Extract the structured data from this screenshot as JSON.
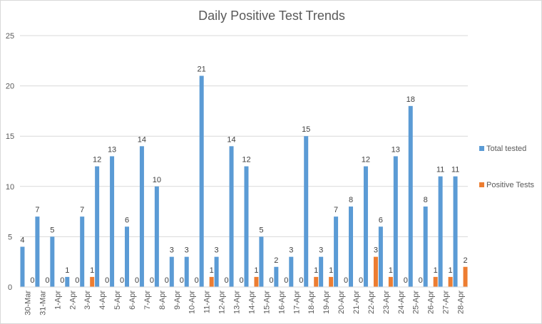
{
  "chart_data": {
    "type": "bar",
    "title": "Daily Positive Test Trends",
    "xlabel": "",
    "ylabel": "",
    "ylim": [
      0,
      25
    ],
    "yticks": [
      0,
      5,
      10,
      15,
      20,
      25
    ],
    "grid": true,
    "legend_position": "right",
    "categories": [
      "30-Mar",
      "31-Mar",
      "1-Apr",
      "2-Apr",
      "3-Apr",
      "4-Apr",
      "5-Apr",
      "6-Apr",
      "7-Apr",
      "8-Apr",
      "9-Apr",
      "10-Apr",
      "11-Apr",
      "12-Apr",
      "13-Apr",
      "14-Apr",
      "15-Apr",
      "16-Apr",
      "17-Apr",
      "18-Apr",
      "19-Apr",
      "20-Apr",
      "21-Apr",
      "22-Apr",
      "23-Apr",
      "24-Apr",
      "25-Apr",
      "26-Apr",
      "27-Apr",
      "28-Apr"
    ],
    "series": [
      {
        "name": "Total tested",
        "color": "#5b9bd5",
        "values": [
          4,
          7,
          5,
          1,
          7,
          12,
          13,
          6,
          14,
          10,
          3,
          3,
          21,
          3,
          14,
          12,
          5,
          2,
          3,
          15,
          3,
          7,
          8,
          12,
          6,
          13,
          18,
          8,
          11,
          11
        ]
      },
      {
        "name": "Positive Tests",
        "color": "#ed7d31",
        "values": [
          0,
          0,
          0,
          0,
          1,
          0,
          0,
          0,
          0,
          0,
          0,
          0,
          1,
          0,
          0,
          1,
          0,
          0,
          0,
          1,
          1,
          0,
          0,
          3,
          1,
          0,
          0,
          1,
          1,
          2
        ]
      }
    ]
  }
}
